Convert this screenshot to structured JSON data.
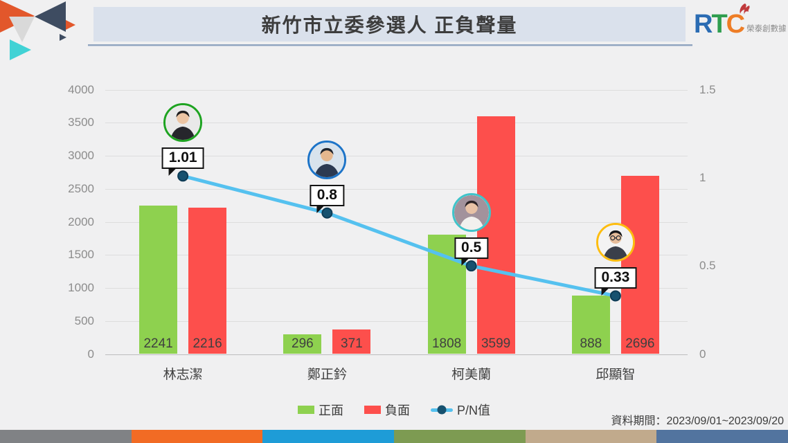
{
  "header": {
    "title": "新竹市立委參選人 正負聲量",
    "logo": {
      "r": "R",
      "t": "T",
      "c": "C",
      "tagline": "榮泰創數據"
    }
  },
  "chart_data": {
    "type": "bar+line combo",
    "categories": [
      "林志潔",
      "鄭正鈐",
      "柯美蘭",
      "邱顯智"
    ],
    "series": [
      {
        "name": "正面",
        "type": "bar",
        "axis": "left",
        "color": "#8ed14f",
        "values": [
          2241,
          296,
          1808,
          888
        ]
      },
      {
        "name": "負面",
        "type": "bar",
        "axis": "left",
        "color": "#fd4f4c",
        "values": [
          2216,
          371,
          3599,
          2696
        ]
      },
      {
        "name": "P/N值",
        "type": "line",
        "axis": "right",
        "color": "#55c1ef",
        "dot_color": "#16516f",
        "values": [
          1.01,
          0.8,
          0.5,
          0.33
        ],
        "point_labels": [
          "1.01",
          "0.8",
          "0.5",
          "0.33"
        ]
      }
    ],
    "left_axis": {
      "min": 0,
      "max": 4000,
      "step": 500,
      "tick_labels": [
        "0",
        "500",
        "1000",
        "1500",
        "2000",
        "2500",
        "3000",
        "3500",
        "4000"
      ]
    },
    "right_axis": {
      "min": 0,
      "max": 1.5,
      "tick_labels": [
        "0",
        "0.5",
        "1",
        "1.5"
      ],
      "tick_values": [
        0,
        0.5,
        1,
        1.5
      ]
    },
    "legend": {
      "position": "bottom",
      "items": [
        "正面",
        "負面",
        "P/N值"
      ]
    },
    "grid": true,
    "avatars": [
      {
        "candidate": "林志潔",
        "ring": "#1ea321",
        "bg": "#e9e9e9",
        "body": "#26262c",
        "skin": "#ecc5a4",
        "hair": "#1d1d1f",
        "glasses": false
      },
      {
        "candidate": "鄭正鈐",
        "ring": "#1d74c8",
        "bg": "#d8e3ed",
        "body": "#2c3a52",
        "skin": "#e5b78e",
        "hair": "#20242c",
        "glasses": false
      },
      {
        "candidate": "柯美蘭",
        "ring": "#3fc4ca",
        "bg": "#a2929c",
        "body": "#f2f0ee",
        "skin": "#e8c2a6",
        "hair": "#2b2326",
        "glasses": false
      },
      {
        "candidate": "邱顯智",
        "ring": "#fdbd10",
        "bg": "#f3f3f3",
        "body": "#3a3f4a",
        "skin": "#e6bd9b",
        "hair": "#15161a",
        "glasses": true
      }
    ]
  },
  "footer": {
    "period_label": "資料期間：2023/09/01~2023/09/20",
    "stripe_colors": [
      "#808285",
      "#f26b24",
      "#1e9cd7",
      "#7d9b52",
      "#c1aa8c",
      "#52749f"
    ]
  }
}
